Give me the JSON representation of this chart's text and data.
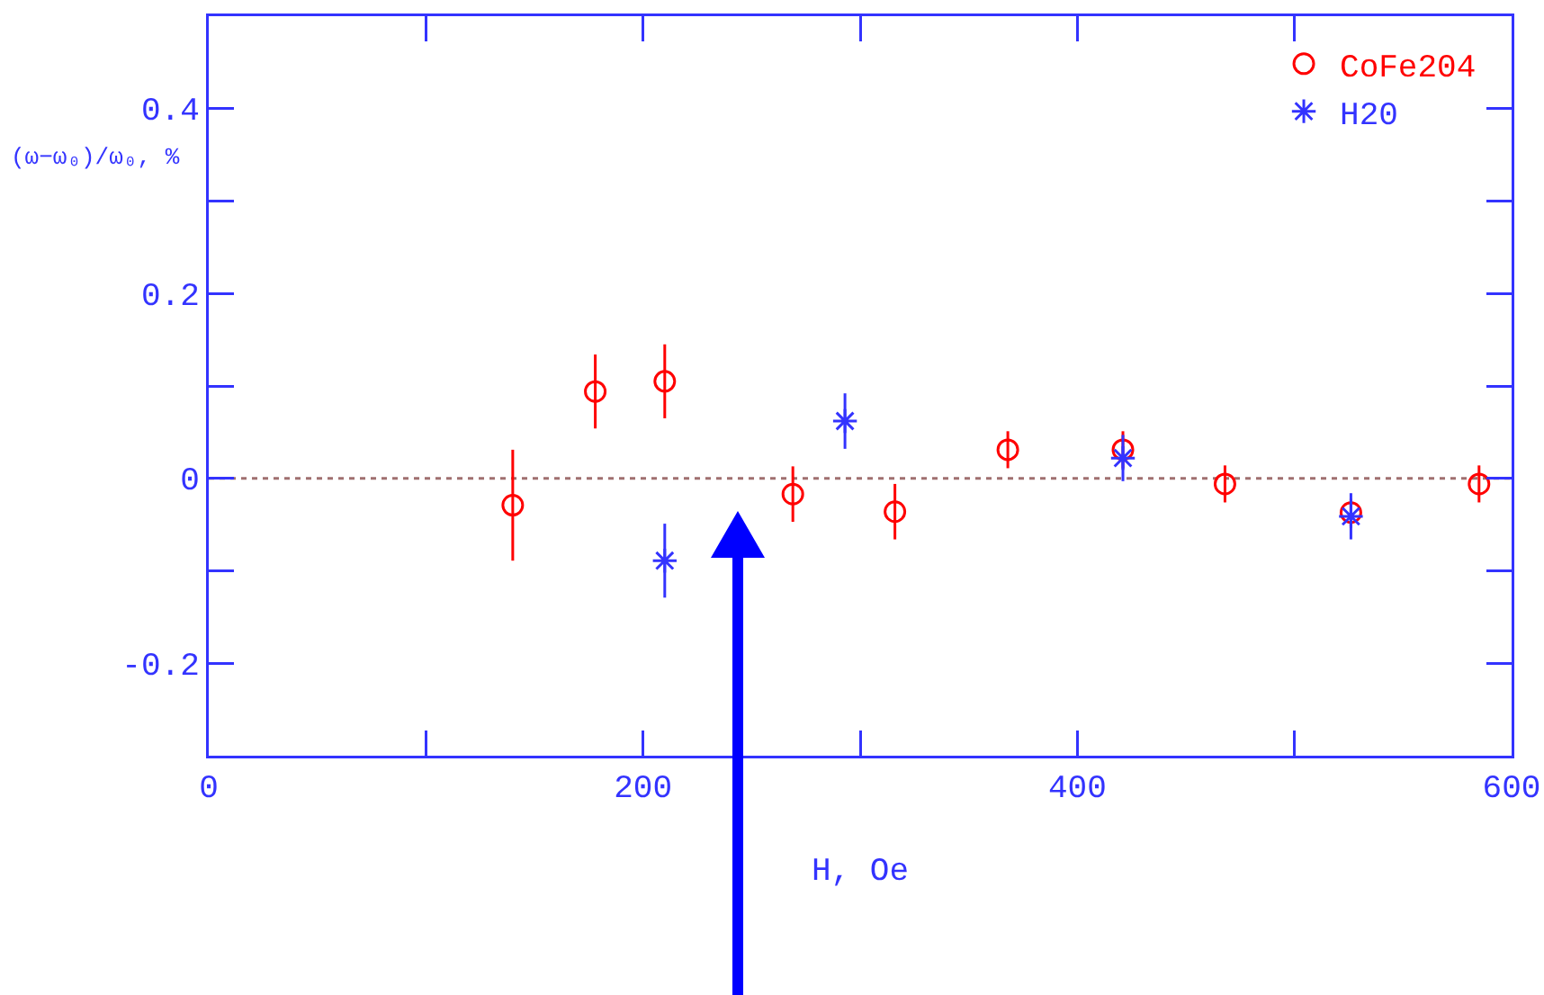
{
  "chart_data": {
    "type": "scatter",
    "xlabel": "H, Oe",
    "ylabel": "(ω−ω₀)/ω₀, %",
    "xlim": [
      0,
      600
    ],
    "ylim": [
      -0.3,
      0.5
    ],
    "xticks": [
      0,
      {
        "value": 100,
        "label": null
      },
      200,
      {
        "value": 300,
        "label": null
      },
      400,
      {
        "value": 500,
        "label": null
      },
      600
    ],
    "yticks": [
      {
        "value": -0.1,
        "label": null
      },
      -0.2,
      0,
      {
        "value": 0.1,
        "label": null
      },
      0.2,
      {
        "value": 0.3,
        "label": null
      },
      0.4
    ],
    "grid": false,
    "legend": "top right",
    "ref_lines": [
      {
        "axis": "y",
        "value": 0,
        "color": "#a07070",
        "line_style": "dotted"
      }
    ],
    "series": [
      {
        "name": "CoFe204",
        "color": "#ff0000",
        "marker": "circle",
        "x": [
          140,
          178,
          210,
          269,
          316,
          368,
          421,
          468,
          526,
          585
        ],
        "values": [
          -0.029,
          0.094,
          0.105,
          -0.017,
          -0.036,
          0.031,
          0.031,
          -0.006,
          -0.037,
          -0.006
        ],
        "errors": [
          0.06,
          0.04,
          0.04,
          0.03,
          0.03,
          0.02,
          0.02,
          0.02,
          0.015,
          0.02
        ]
      },
      {
        "name": "H20",
        "color": "#3333ff",
        "marker": "cross",
        "x": [
          210,
          293,
          421,
          526
        ],
        "values": [
          -0.089,
          0.062,
          0.022,
          -0.041
        ],
        "errors": [
          0.04,
          0.03,
          0.025,
          0.025
        ]
      }
    ]
  }
}
